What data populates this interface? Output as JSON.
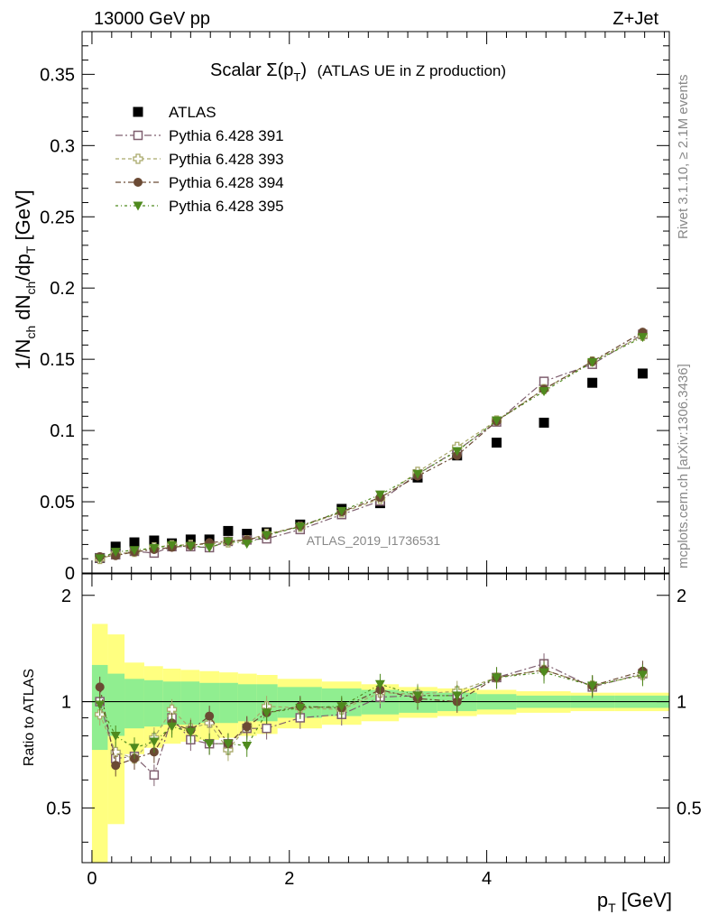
{
  "header": {
    "left": "13000 GeV pp",
    "right": "Z+Jet"
  },
  "title": {
    "main": "Scalar Σ(p",
    "sub": "T",
    "close": ")",
    "rest": "(ATLAS UE in Z production)"
  },
  "side_labels": {
    "rivet": "Rivet 3.1.10, ≥ 2.1M events",
    "mcplots": "mcplots.cern.ch [arXiv:1306.3436]"
  },
  "watermark": "ATLAS_2019_I1736531",
  "colors": {
    "atlas": "#000000",
    "p391": "#7f5f6f",
    "p393": "#a9a96a",
    "p394": "#6b4a34",
    "p395": "#4f8a1e",
    "band_inner": "#90ee90",
    "band_outer": "#ffff80"
  },
  "chart_data": {
    "type": "scatter",
    "x": [
      0.08,
      0.24,
      0.43,
      0.63,
      0.81,
      1.0,
      1.19,
      1.38,
      1.57,
      1.77,
      2.11,
      2.53,
      2.92,
      3.3,
      3.7,
      4.1,
      4.58,
      5.07,
      5.58
    ],
    "upper_panel": {
      "ylabel": "1/N_ch dN_ch/dp_T [GeV]",
      "ylim": [
        0,
        0.38
      ],
      "yticks": [
        "0",
        "0.05",
        "0.1",
        "0.15",
        "0.2",
        "0.25",
        "0.3",
        "0.35"
      ],
      "series": [
        {
          "name": "ATLAS",
          "marker": "filled-square",
          "values": [
            0.0105,
            0.0185,
            0.0215,
            0.0228,
            0.0208,
            0.0235,
            0.0235,
            0.0295,
            0.0275,
            0.0285,
            0.034,
            0.045,
            0.049,
            0.067,
            0.0825,
            0.0915,
            0.1055,
            0.1335,
            0.14
          ]
        },
        {
          "name": "Pythia 6.428 391",
          "marker": "open-square",
          "values": [
            0.0105,
            0.0128,
            0.0152,
            0.014,
            0.0185,
            0.0185,
            0.0178,
            0.0222,
            0.0232,
            0.024,
            0.0305,
            0.041,
            0.0505,
            0.0695,
            0.086,
            0.106,
            0.1345,
            0.1465,
            0.1675
          ]
        },
        {
          "name": "Pythia 6.428 393",
          "marker": "open-cross",
          "values": [
            0.0098,
            0.0133,
            0.0148,
            0.018,
            0.0195,
            0.0198,
            0.0203,
            0.0215,
            0.023,
            0.0275,
            0.0325,
            0.0425,
            0.052,
            0.071,
            0.0885,
            0.107,
            0.129,
            0.1485,
            0.1665
          ]
        },
        {
          "name": "Pythia 6.428 394",
          "marker": "filled-circle",
          "values": [
            0.0115,
            0.0122,
            0.0148,
            0.0165,
            0.018,
            0.0193,
            0.0213,
            0.0224,
            0.0232,
            0.0265,
            0.033,
            0.043,
            0.053,
            0.068,
            0.0825,
            0.1065,
            0.129,
            0.1485,
            0.169
          ]
        },
        {
          "name": "Pythia 6.428 395",
          "marker": "filled-triangle-down",
          "values": [
            0.0102,
            0.0148,
            0.016,
            0.0175,
            0.0195,
            0.019,
            0.0178,
            0.0222,
            0.0205,
            0.0265,
            0.0325,
            0.0435,
            0.055,
            0.0695,
            0.0855,
            0.107,
            0.1275,
            0.148,
            0.1655
          ]
        }
      ]
    },
    "lower_panel": {
      "ylabel": "Ratio to ATLAS",
      "ylim": [
        0.35,
        2.3
      ],
      "yticks": [
        "0.5",
        "1",
        "2"
      ],
      "series": [
        {
          "name": "Pythia 6.428 391",
          "values": [
            1.0,
            0.69,
            0.7,
            0.62,
            0.9,
            0.78,
            0.76,
            0.76,
            0.84,
            0.84,
            0.9,
            0.92,
            1.03,
            1.04,
            1.04,
            1.17,
            1.28,
            1.1,
            1.2
          ]
        },
        {
          "name": "Pythia 6.428 393",
          "values": [
            0.92,
            0.72,
            0.69,
            0.79,
            0.95,
            0.84,
            0.87,
            0.73,
            0.85,
            0.97,
            0.96,
            0.95,
            1.06,
            1.05,
            1.07,
            1.17,
            1.23,
            1.11,
            1.19
          ]
        },
        {
          "name": "Pythia 6.428 394",
          "values": [
            1.1,
            0.66,
            0.69,
            0.72,
            0.87,
            0.83,
            0.91,
            0.76,
            0.85,
            0.93,
            0.97,
            0.96,
            1.08,
            1.02,
            1.0,
            1.17,
            1.23,
            1.11,
            1.22
          ]
        },
        {
          "name": "Pythia 6.428 395",
          "values": [
            0.98,
            0.8,
            0.74,
            0.77,
            0.85,
            0.82,
            0.76,
            0.76,
            0.75,
            0.93,
            0.96,
            0.97,
            1.12,
            1.04,
            1.04,
            1.17,
            1.21,
            1.11,
            1.19
          ]
        }
      ],
      "band_inner": [
        0.27,
        0.2,
        0.16,
        0.15,
        0.14,
        0.14,
        0.13,
        0.13,
        0.12,
        0.12,
        0.1,
        0.09,
        0.08,
        0.07,
        0.06,
        0.05,
        0.04,
        0.04,
        0.04
      ],
      "band_outer": [
        0.66,
        0.55,
        0.29,
        0.26,
        0.24,
        0.23,
        0.22,
        0.21,
        0.2,
        0.19,
        0.16,
        0.14,
        0.12,
        0.1,
        0.09,
        0.08,
        0.07,
        0.06,
        0.06
      ],
      "bin_edges": [
        0.0,
        0.16,
        0.33,
        0.53,
        0.72,
        0.9,
        1.09,
        1.29,
        1.48,
        1.67,
        1.88,
        2.33,
        2.73,
        3.11,
        3.5,
        3.9,
        4.3,
        4.85,
        5.3,
        5.85
      ]
    },
    "xaxis": {
      "label": "p_T [GeV]",
      "xlim": [
        -0.1,
        5.85
      ],
      "ticks": [
        "0",
        "2",
        "4"
      ],
      "tick_values": [
        0,
        2,
        4
      ]
    },
    "legend": {
      "placement": "top-left"
    }
  }
}
